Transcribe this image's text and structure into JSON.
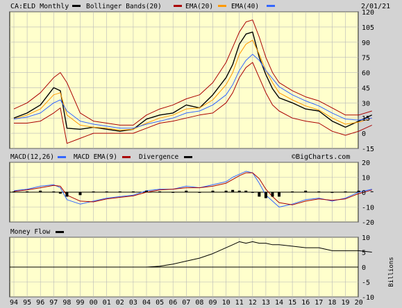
{
  "header": {
    "symbol_label": "CA:ELD Monthly",
    "date": "2/01/21",
    "watermark": "©BigCharts.com"
  },
  "price_panel": {
    "legend": [
      {
        "label": "Bollinger Bands(20)",
        "color": "#000000"
      },
      {
        "label": "EMA(20)",
        "color": "#aa0000"
      },
      {
        "label": "EMA(40)",
        "color": "#ff9900"
      },
      {
        "label": "",
        "color": "#3366ff"
      }
    ],
    "y_ticks": [
      "120",
      "105",
      "90",
      "75",
      "60",
      "45",
      "30",
      "15",
      "0",
      "-15"
    ]
  },
  "macd_panel": {
    "legend": [
      {
        "label": "MACD(12,26)",
        "color": "#3366ff"
      },
      {
        "label": "MACD EMA(9)",
        "color": "#aa0000"
      },
      {
        "label": "Divergence",
        "color": "#000000"
      }
    ],
    "y_ticks": [
      "20",
      "10",
      "0",
      "-10",
      "-20"
    ]
  },
  "flow_panel": {
    "legend": [
      {
        "label": "Money Flow",
        "color": "#000000"
      }
    ],
    "y_ticks": [
      "10",
      "5",
      "0",
      "-5",
      "-10"
    ],
    "unit_label": "Billions"
  },
  "x_ticks": [
    "94",
    "95",
    "96",
    "97",
    "98",
    "99",
    "00",
    "01",
    "02",
    "03",
    "04",
    "05",
    "06",
    "07",
    "08",
    "09",
    "10",
    "11",
    "12",
    "13",
    "14",
    "15",
    "16",
    "17",
    "18",
    "19",
    "20"
  ],
  "colors": {
    "panel_bg": "#ffffcc",
    "frame_bg": "#d3d3d3",
    "grid": "#b8b8b8",
    "price": "#000000",
    "bollinger": "#aa0000",
    "ema20": "#ff9900",
    "ema40": "#3366ff",
    "macd": "#3366ff",
    "macd_signal": "#aa0000",
    "divergence": "#000000",
    "money_flow": "#000000"
  },
  "chart_data": [
    {
      "type": "line",
      "panel": "price",
      "ylim": [
        -15,
        120
      ],
      "x_unit": "year",
      "x": [
        1994,
        1995,
        1996,
        1997,
        1997.5,
        1998,
        1999,
        2000,
        2001,
        2002,
        2003,
        2004,
        2005,
        2006,
        2007,
        2008,
        2009,
        2010,
        2010.5,
        2011,
        2011.5,
        2012,
        2012.5,
        2013,
        2013.5,
        2014,
        2015,
        2016,
        2017,
        2018,
        2019,
        2020,
        2021
      ],
      "series": [
        {
          "name": "CA:ELD",
          "values": [
            15,
            20,
            28,
            45,
            42,
            5,
            4,
            6,
            4,
            2,
            4,
            14,
            18,
            20,
            28,
            25,
            38,
            55,
            68,
            88,
            98,
            100,
            75,
            58,
            44,
            35,
            30,
            24,
            22,
            12,
            6,
            12,
            18
          ]
        },
        {
          "name": "Bollinger Bands(20) upper",
          "values": [
            24,
            30,
            40,
            55,
            60,
            50,
            20,
            12,
            10,
            8,
            8,
            18,
            24,
            28,
            34,
            38,
            50,
            70,
            85,
            100,
            110,
            112,
            95,
            75,
            60,
            50,
            42,
            36,
            32,
            25,
            18,
            18,
            22
          ]
        },
        {
          "name": "Bollinger Bands(20) lower",
          "values": [
            10,
            10,
            12,
            20,
            25,
            -10,
            -5,
            0,
            0,
            0,
            0,
            5,
            10,
            12,
            15,
            18,
            20,
            30,
            40,
            55,
            65,
            70,
            55,
            40,
            28,
            22,
            15,
            12,
            10,
            2,
            -2,
            2,
            8
          ]
        },
        {
          "name": "EMA(20)",
          "values": [
            14,
            18,
            24,
            38,
            40,
            18,
            8,
            6,
            5,
            3,
            4,
            10,
            15,
            18,
            24,
            25,
            33,
            48,
            60,
            78,
            88,
            92,
            78,
            62,
            50,
            40,
            33,
            27,
            23,
            15,
            9,
            11,
            15
          ]
        },
        {
          "name": "EMA(40)",
          "values": [
            14,
            16,
            20,
            30,
            33,
            22,
            12,
            9,
            7,
            5,
            5,
            9,
            12,
            15,
            20,
            22,
            28,
            38,
            48,
            62,
            72,
            78,
            72,
            62,
            54,
            46,
            38,
            32,
            27,
            20,
            14,
            13,
            15
          ]
        }
      ]
    },
    {
      "type": "line",
      "panel": "macd",
      "ylim": [
        -20,
        20
      ],
      "x_unit": "year",
      "x": [
        1994,
        1995,
        1996,
        1997,
        1997.5,
        1998,
        1999,
        2000,
        2001,
        2002,
        2003,
        2004,
        2005,
        2006,
        2007,
        2008,
        2009,
        2010,
        2010.5,
        2011,
        2011.5,
        2012,
        2012.5,
        2013,
        2013.5,
        2014,
        2015,
        2016,
        2017,
        2018,
        2019,
        2020,
        2021
      ],
      "series": [
        {
          "name": "MACD(12,26)",
          "values": [
            1,
            2,
            4,
            5,
            3,
            -5,
            -8,
            -6,
            -4,
            -3,
            -2,
            1,
            2,
            2,
            4,
            3,
            5,
            7,
            10,
            12,
            14,
            13,
            6,
            -2,
            -6,
            -10,
            -8,
            -5,
            -4,
            -6,
            -4,
            0,
            2
          ]
        },
        {
          "name": "MACD EMA(9)",
          "values": [
            0.5,
            1.5,
            3,
            4.5,
            4,
            -2,
            -6,
            -6.5,
            -4.5,
            -3.5,
            -2.5,
            0,
            1.5,
            2,
            3,
            3,
            4,
            6,
            8.5,
            11,
            13,
            13,
            9,
            2,
            -3,
            -7,
            -8.5,
            -6,
            -4.5,
            -5.5,
            -4.5,
            -1,
            1.5
          ]
        },
        {
          "name": "Divergence",
          "values": [
            0.5,
            0.5,
            1,
            0.5,
            -1,
            -3,
            -2,
            0.5,
            0.5,
            0.5,
            0.5,
            1,
            0.5,
            0,
            1,
            0,
            1,
            1,
            1.5,
            1,
            1,
            0,
            -3,
            -4,
            -3,
            -3,
            0.5,
            1,
            0.5,
            -0.5,
            0.5,
            1,
            0.5
          ]
        }
      ]
    },
    {
      "type": "line",
      "panel": "money_flow",
      "ylim": [
        -10,
        10
      ],
      "x_unit": "year",
      "x": [
        2003,
        2004,
        2005,
        2006,
        2007,
        2008,
        2009,
        2010,
        2010.5,
        2011,
        2011.5,
        2012,
        2012.5,
        2013,
        2013.5,
        2014,
        2015,
        2016,
        2017,
        2018,
        2019,
        2020,
        2021
      ],
      "series": [
        {
          "name": "Money Flow",
          "values": [
            0,
            0,
            0.3,
            1,
            2,
            3,
            4.5,
            6.5,
            7.5,
            8.5,
            8,
            8.5,
            8,
            8,
            7.5,
            7.5,
            7,
            6.5,
            6.5,
            5.5,
            5.5,
            5.5,
            5
          ]
        }
      ]
    }
  ]
}
